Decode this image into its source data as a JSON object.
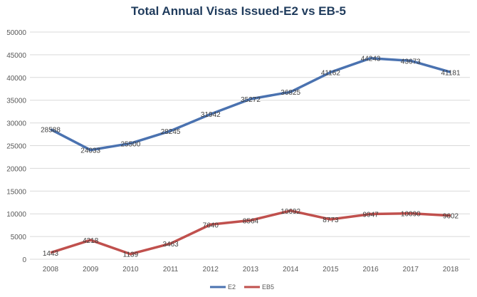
{
  "chart_data": {
    "type": "line",
    "title": "Total Annual Visas Issued-E2 vs EB-5",
    "xlabel": "",
    "ylabel": "",
    "categories": [
      "2008",
      "2009",
      "2010",
      "2011",
      "2012",
      "2013",
      "2014",
      "2015",
      "2016",
      "2017",
      "2018"
    ],
    "ylim": [
      0,
      50000
    ],
    "yticks": [
      "0",
      "5000",
      "10000",
      "15000",
      "20000",
      "25000",
      "30000",
      "35000",
      "40000",
      "45000",
      "50000"
    ],
    "grid": true,
    "legend": "bottom",
    "series": [
      {
        "name": "E2",
        "color": "#4a72b0",
        "values": [
          28588,
          24033,
          25500,
          28245,
          31942,
          35272,
          36825,
          41162,
          44243,
          43673,
          41181
        ]
      },
      {
        "name": "EB5",
        "color": "#c0504d",
        "values": [
          1443,
          4218,
          1139,
          3463,
          7640,
          8564,
          10692,
          8773,
          9947,
          10090,
          9602
        ]
      }
    ]
  }
}
